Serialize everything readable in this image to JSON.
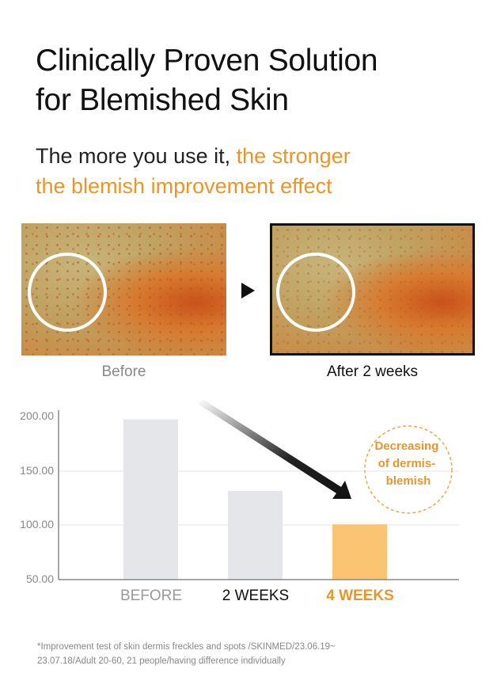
{
  "title": [
    "Clinically Proven Solution",
    "for Blemished Skin"
  ],
  "subtitle": {
    "plain": "The more you use it, ",
    "accent1": "the stronger",
    "accent2": "the blemish improvement effect"
  },
  "photos": {
    "before_caption": "Before",
    "after_caption": "After 2 weeks"
  },
  "colors": {
    "accent": "#e8962a",
    "bar_gray": "#e4e6ea",
    "bar_highlight": "#fbc472"
  },
  "chart_data": {
    "type": "bar",
    "categories": [
      "BEFORE",
      "2 WEEKS",
      "4 WEEKS"
    ],
    "values": [
      198,
      132,
      101
    ],
    "ylim": [
      50,
      200
    ],
    "yticks": [
      "200.00",
      "150.00",
      "100.00",
      "50.00"
    ],
    "grid": true,
    "annotation": "Decreasing of dermis-blemish",
    "annotation_lines": [
      "Decreasing",
      "of dermis-",
      "blemish"
    ]
  },
  "footnote": [
    "*Improvement test of skin dermis freckles and spots /SKINMED/23.06.19~",
    "23.07.18/Adult 20-60, 21 people/having difference individually"
  ]
}
